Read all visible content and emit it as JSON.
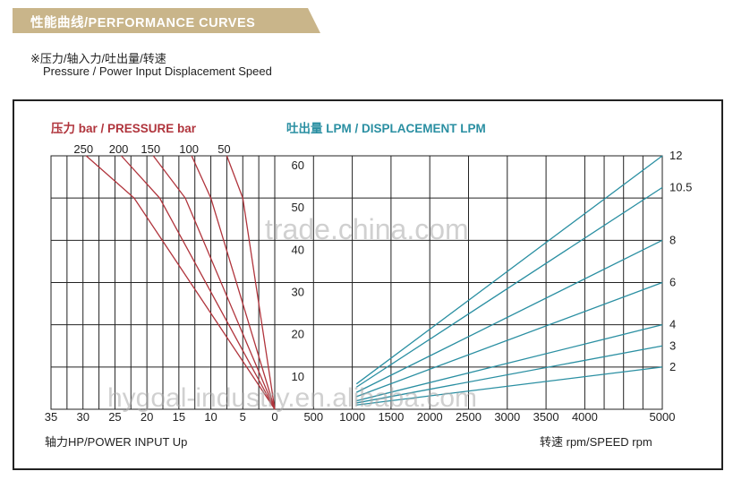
{
  "header": {
    "banner_title": "性能曲线/PERFORMANCE CURVES",
    "subtitle_cn": "※压力/轴入力/吐出量/转速",
    "subtitle_en": "Pressure / Power Input Displacement Speed"
  },
  "colors": {
    "banner": "#c9b58a",
    "pressure_lines": "#b0343c",
    "displacement_lines": "#2a8fa2",
    "grid": "#222222",
    "text": "#222222"
  },
  "watermarks": [
    "trade.china.com",
    "hygoal-industry.en.alibaba.com"
  ],
  "chart_data": {
    "type": "line",
    "title_pressure": "压力 bar / PRESSURE bar",
    "title_displacement": "吐出量 LPM / DISPLACEMENT LPM",
    "xlabel_left": "轴力HP/POWER INPUT  Up",
    "xlabel_right": "转速 rpm/SPEED rpm",
    "power_ticks": [
      35,
      30,
      25,
      20,
      15,
      10,
      5,
      0
    ],
    "speed_ticks": [
      500,
      1000,
      1500,
      2000,
      2500,
      3000,
      3500,
      4000,
      5000
    ],
    "flow_ticks": [
      10,
      20,
      30,
      40,
      50,
      60
    ],
    "ylim": [
      0,
      60
    ],
    "xlim_power": [
      35,
      0
    ],
    "xlim_speed": [
      0,
      5000
    ],
    "grid": true,
    "pressure_series": [
      {
        "name": "250",
        "power_at_60": 29.5,
        "power_at_50": 22
      },
      {
        "name": "200",
        "power_at_60": 24,
        "power_at_50": 18
      },
      {
        "name": "150",
        "power_at_60": 19,
        "power_at_50": 14
      },
      {
        "name": "100",
        "power_at_60": 13,
        "power_at_50": 10
      },
      {
        "name": "50",
        "power_at_60": 7.5,
        "power_at_50": 5
      }
    ],
    "displacement_series": [
      {
        "name": "12",
        "lpm_at_5000": 60
      },
      {
        "name": "10.5",
        "lpm_at_5000": 52.5
      },
      {
        "name": "8",
        "lpm_at_5000": 40
      },
      {
        "name": "6",
        "lpm_at_5000": 30
      },
      {
        "name": "4",
        "lpm_at_5000": 20
      },
      {
        "name": "3",
        "lpm_at_5000": 15
      },
      {
        "name": "2",
        "lpm_at_5000": 10
      }
    ]
  }
}
